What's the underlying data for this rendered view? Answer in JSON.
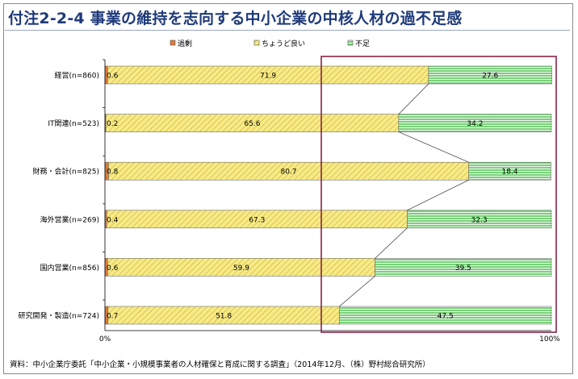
{
  "title": "付注2-2-4 事業の維持を志向する中小企業の中核人材の過不足感",
  "source": "資料：中小企業庁委託「中小企業・小規模事業者の人材確保と育成に関する調査」（2014年12月、（株）野村総合研究所）",
  "colors": {
    "excess": "#e07a38",
    "ok": "#f7ea8a",
    "ok_hatch": "#c9b11a",
    "lack": "#79d07a",
    "lack_stripe": "#ffffff",
    "highlight": "#8b2346"
  },
  "chart_data": {
    "type": "bar",
    "orientation": "horizontal",
    "stacked": true,
    "categories": [
      "経営(n=860)",
      "IT関連(n=523)",
      "財務・会計(n=825)",
      "海外営業(n=269)",
      "国内営業(n=856)",
      "研究開発・製造(n=724)"
    ],
    "series": [
      {
        "name": "過剰",
        "values": [
          0.6,
          0.2,
          0.8,
          0.4,
          0.6,
          0.7
        ]
      },
      {
        "name": "ちょうど良い",
        "values": [
          71.9,
          65.6,
          80.7,
          67.3,
          59.9,
          51.8
        ]
      },
      {
        "name": "不足",
        "values": [
          27.6,
          34.2,
          18.4,
          32.3,
          39.5,
          47.5
        ]
      }
    ],
    "xlim": [
      0,
      100
    ],
    "x_tick_labels": [
      "0%",
      "100%"
    ],
    "legend": "top",
    "grid": false,
    "connector_lines": true,
    "highlight_box": "lack"
  }
}
